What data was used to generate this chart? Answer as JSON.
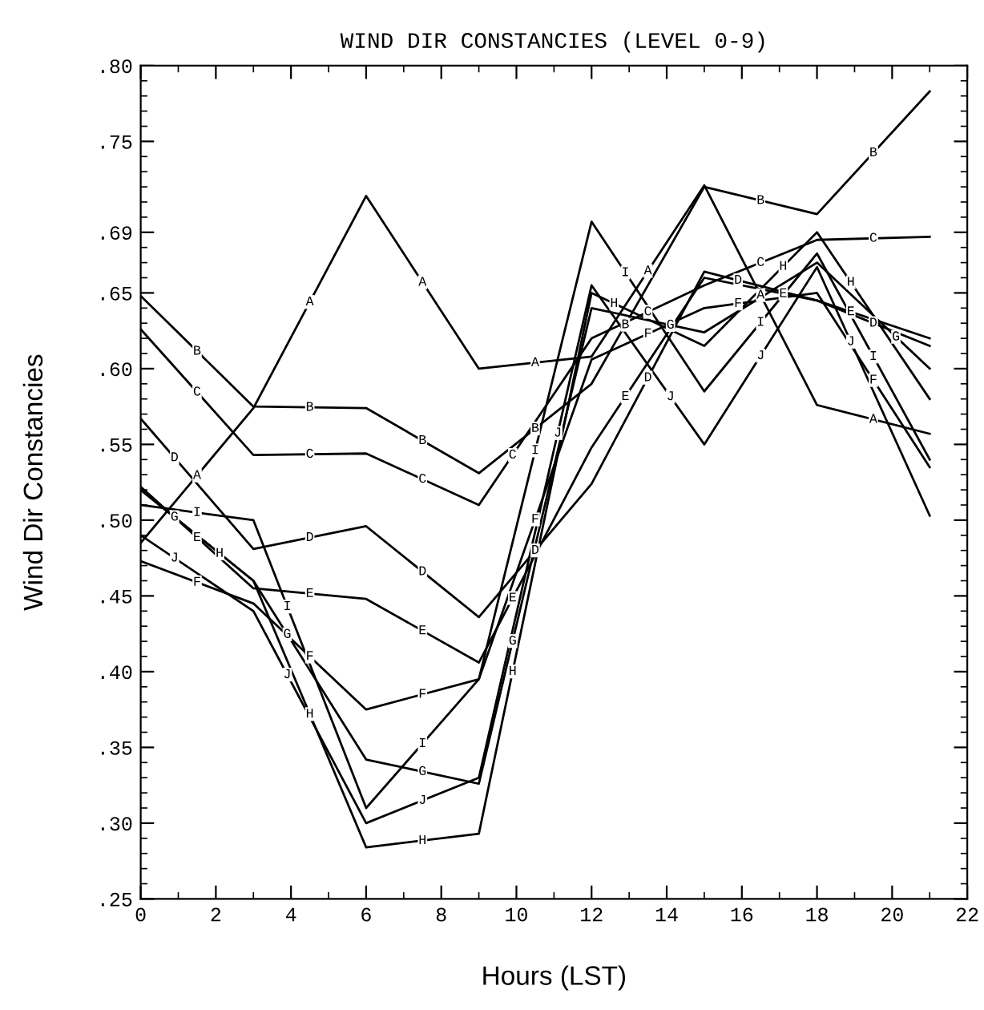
{
  "chart_data": {
    "type": "line",
    "title": "WIND DIR CONSTANCIES (LEVEL 0-9)",
    "xlabel": "Hours (LST)",
    "ylabel": "Wind Dir Constancies",
    "x": [
      0,
      3,
      6,
      9,
      12,
      15,
      18,
      21
    ],
    "series": [
      {
        "name": "A",
        "color": "#000000",
        "values": [
          0.485,
          0.574,
          0.714,
          0.6,
          0.608,
          0.721,
          0.576,
          0.557
        ]
      },
      {
        "name": "B",
        "color": "#000000",
        "values": [
          0.648,
          0.575,
          0.574,
          0.531,
          0.59,
          0.72,
          0.702,
          0.783
        ]
      },
      {
        "name": "C",
        "color": "#000000",
        "values": [
          0.626,
          0.543,
          0.544,
          0.51,
          0.62,
          0.655,
          0.685,
          0.687
        ]
      },
      {
        "name": "D",
        "color": "#000000",
        "values": [
          0.567,
          0.481,
          0.496,
          0.436,
          0.524,
          0.664,
          0.645,
          0.615
        ]
      },
      {
        "name": "E",
        "color": "#000000",
        "values": [
          0.522,
          0.455,
          0.448,
          0.406,
          0.548,
          0.66,
          0.645,
          0.62
        ]
      },
      {
        "name": "F",
        "color": "#000000",
        "values": [
          0.473,
          0.445,
          0.375,
          0.395,
          0.606,
          0.64,
          0.65,
          0.535
        ]
      },
      {
        "name": "G",
        "color": "#000000",
        "values": [
          0.52,
          0.46,
          0.342,
          0.326,
          0.64,
          0.624,
          0.67,
          0.6
        ]
      },
      {
        "name": "H",
        "color": "#000000",
        "values": [
          0.52,
          0.46,
          0.284,
          0.293,
          0.65,
          0.615,
          0.69,
          0.58
        ]
      },
      {
        "name": "I",
        "color": "#000000",
        "values": [
          0.51,
          0.5,
          0.31,
          0.395,
          0.697,
          0.585,
          0.676,
          0.54
        ]
      },
      {
        "name": "J",
        "color": "#000000",
        "values": [
          0.49,
          0.44,
          0.3,
          0.33,
          0.655,
          0.55,
          0.667,
          0.503
        ]
      }
    ],
    "xlim": [
      0,
      22
    ],
    "xticks": [
      0,
      2,
      4,
      6,
      8,
      10,
      12,
      14,
      16,
      18,
      20,
      22
    ],
    "ylim": [
      0.25,
      0.8
    ],
    "yticks": [
      {
        "value": 0.25,
        "label": ".25"
      },
      {
        "value": 0.3,
        "label": ".30"
      },
      {
        "value": 0.35,
        "label": ".35"
      },
      {
        "value": 0.4,
        "label": ".40"
      },
      {
        "value": 0.45,
        "label": ".45"
      },
      {
        "value": 0.5,
        "label": ".50"
      },
      {
        "value": 0.55,
        "label": ".55"
      },
      {
        "value": 0.6,
        "label": ".60"
      },
      {
        "value": 0.65,
        "label": ".65"
      },
      {
        "value": 0.69,
        "label": ".69"
      },
      {
        "value": 0.75,
        "label": ".75"
      },
      {
        "value": 0.8,
        "label": ".80"
      }
    ],
    "grid": false,
    "legend": false,
    "marker": "none",
    "line_style": "solid"
  }
}
